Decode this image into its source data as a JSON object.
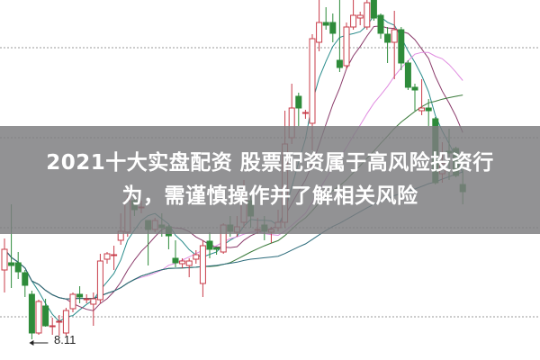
{
  "chart_data": {
    "type": "candlestick",
    "title": "",
    "xlabel": "",
    "ylabel": "",
    "ylim": [
      7.88,
      11.88
    ],
    "grid": true,
    "gridlines": [
      11.35,
      10.35,
      9.35,
      8.36
    ],
    "low_marker": {
      "value": 8.11,
      "label": "8.11",
      "index": 4
    },
    "candles": [
      [
        8.88,
        9.23,
        8.63,
        9.11
      ],
      [
        8.96,
        9.61,
        8.68,
        8.93
      ],
      [
        8.96,
        9.08,
        8.78,
        8.86
      ],
      [
        8.85,
        8.88,
        8.58,
        8.71
      ],
      [
        8.61,
        8.65,
        8.11,
        8.18
      ],
      [
        8.18,
        8.55,
        8.16,
        8.53
      ],
      [
        8.48,
        8.56,
        8.25,
        8.26
      ],
      [
        8.26,
        8.35,
        8.16,
        8.26
      ],
      [
        8.31,
        8.38,
        8.15,
        8.31
      ],
      [
        8.18,
        8.46,
        8.15,
        8.43
      ],
      [
        8.45,
        8.63,
        8.41,
        8.61
      ],
      [
        8.61,
        8.7,
        8.51,
        8.58
      ],
      [
        8.56,
        8.61,
        8.51,
        8.56
      ],
      [
        8.5,
        8.63,
        8.26,
        8.56
      ],
      [
        8.55,
        9.06,
        8.51,
        8.98
      ],
      [
        9.0,
        9.08,
        8.95,
        9.06
      ],
      [
        9.05,
        9.15,
        8.88,
        9.05
      ],
      [
        9.21,
        9.51,
        9.16,
        9.31
      ],
      [
        9.3,
        9.71,
        9.25,
        9.65
      ],
      [
        9.65,
        9.71,
        9.48,
        9.55
      ],
      [
        9.58,
        9.65,
        9.51,
        9.58
      ],
      [
        9.43,
        9.43,
        8.93,
        9.33
      ],
      [
        9.33,
        9.46,
        9.3,
        9.43
      ],
      [
        9.38,
        9.51,
        9.25,
        9.35
      ],
      [
        9.36,
        9.38,
        9.11,
        9.26
      ],
      [
        9.01,
        9.21,
        8.91,
        8.96
      ],
      [
        8.95,
        9.01,
        8.9,
        8.98
      ],
      [
        8.93,
        9.01,
        8.8,
        8.98
      ],
      [
        9.0,
        9.1,
        8.95,
        9.05
      ],
      [
        8.73,
        9.21,
        8.58,
        9.15
      ],
      [
        9.2,
        9.3,
        9.01,
        9.11
      ],
      [
        9.13,
        9.13,
        9.05,
        9.11
      ],
      [
        9.08,
        9.4,
        9.06,
        9.38
      ],
      [
        9.38,
        9.48,
        9.25,
        9.31
      ],
      [
        9.3,
        9.48,
        9.25,
        9.36
      ],
      [
        9.41,
        9.88,
        9.35,
        9.68
      ],
      [
        9.65,
        9.75,
        9.35,
        9.48
      ],
      [
        9.33,
        9.46,
        9.28,
        9.33
      ],
      [
        9.38,
        9.48,
        9.21,
        9.31
      ],
      [
        9.3,
        9.36,
        9.18,
        9.33
      ],
      [
        9.35,
        9.55,
        9.31,
        9.41
      ],
      [
        9.41,
        10.65,
        9.35,
        10.28
      ],
      [
        10.35,
        10.95,
        10.28,
        10.68
      ],
      [
        10.81,
        10.85,
        10.48,
        10.68
      ],
      [
        10.63,
        10.66,
        10.56,
        10.63
      ],
      [
        10.51,
        11.5,
        10.21,
        11.45
      ],
      [
        11.41,
        11.88,
        11.31,
        11.63
      ],
      [
        11.63,
        11.8,
        11.55,
        11.6
      ],
      [
        11.63,
        11.73,
        11.41,
        11.51
      ],
      [
        11.21,
        11.88,
        11.08,
        11.13
      ],
      [
        11.15,
        11.63,
        11.11,
        11.58
      ],
      [
        11.58,
        11.88,
        11.55,
        11.71
      ],
      [
        11.68,
        11.75,
        11.6,
        11.71
      ],
      [
        11.58,
        11.88,
        11.55,
        11.85
      ],
      [
        11.88,
        11.88,
        11.65,
        11.68
      ],
      [
        11.71,
        11.73,
        11.45,
        11.51
      ],
      [
        11.5,
        11.58,
        11.18,
        11.41
      ],
      [
        11.41,
        11.76,
        11.0,
        11.55
      ],
      [
        11.55,
        11.58,
        11.1,
        11.18
      ],
      [
        11.18,
        11.21,
        10.88,
        10.91
      ],
      [
        10.91,
        10.95,
        10.65,
        10.88
      ],
      [
        10.65,
        11.0,
        10.6,
        10.68
      ],
      [
        10.68,
        10.78,
        10.48,
        10.65
      ],
      [
        10.56,
        10.58,
        9.83,
        9.85
      ],
      [
        9.95,
        10.3,
        9.85,
        10.06
      ],
      [
        10.2,
        10.45,
        9.88,
        10.18
      ],
      [
        10.23,
        10.25,
        9.91,
        9.93
      ],
      [
        9.83,
        10.11,
        9.61,
        9.75
      ]
    ],
    "moving_averages": [
      {
        "period": 5,
        "color": "#2a8c8c"
      },
      {
        "period": 10,
        "color": "#8a3a6a"
      },
      {
        "period": 20,
        "color": "#e08ce0"
      },
      {
        "period": 30,
        "color": "#3a7a3a"
      },
      {
        "period": 60,
        "color": "#2a6a7a"
      }
    ],
    "colors": {
      "up": "#c83c4a",
      "down": "#2e8b3a",
      "grid": "#9a9a9a"
    }
  },
  "banner": {
    "line1": "2021十大实盘配资 股票配资属于高风险投资行",
    "line2": "为，需谨慎操作并了解相关风险"
  }
}
